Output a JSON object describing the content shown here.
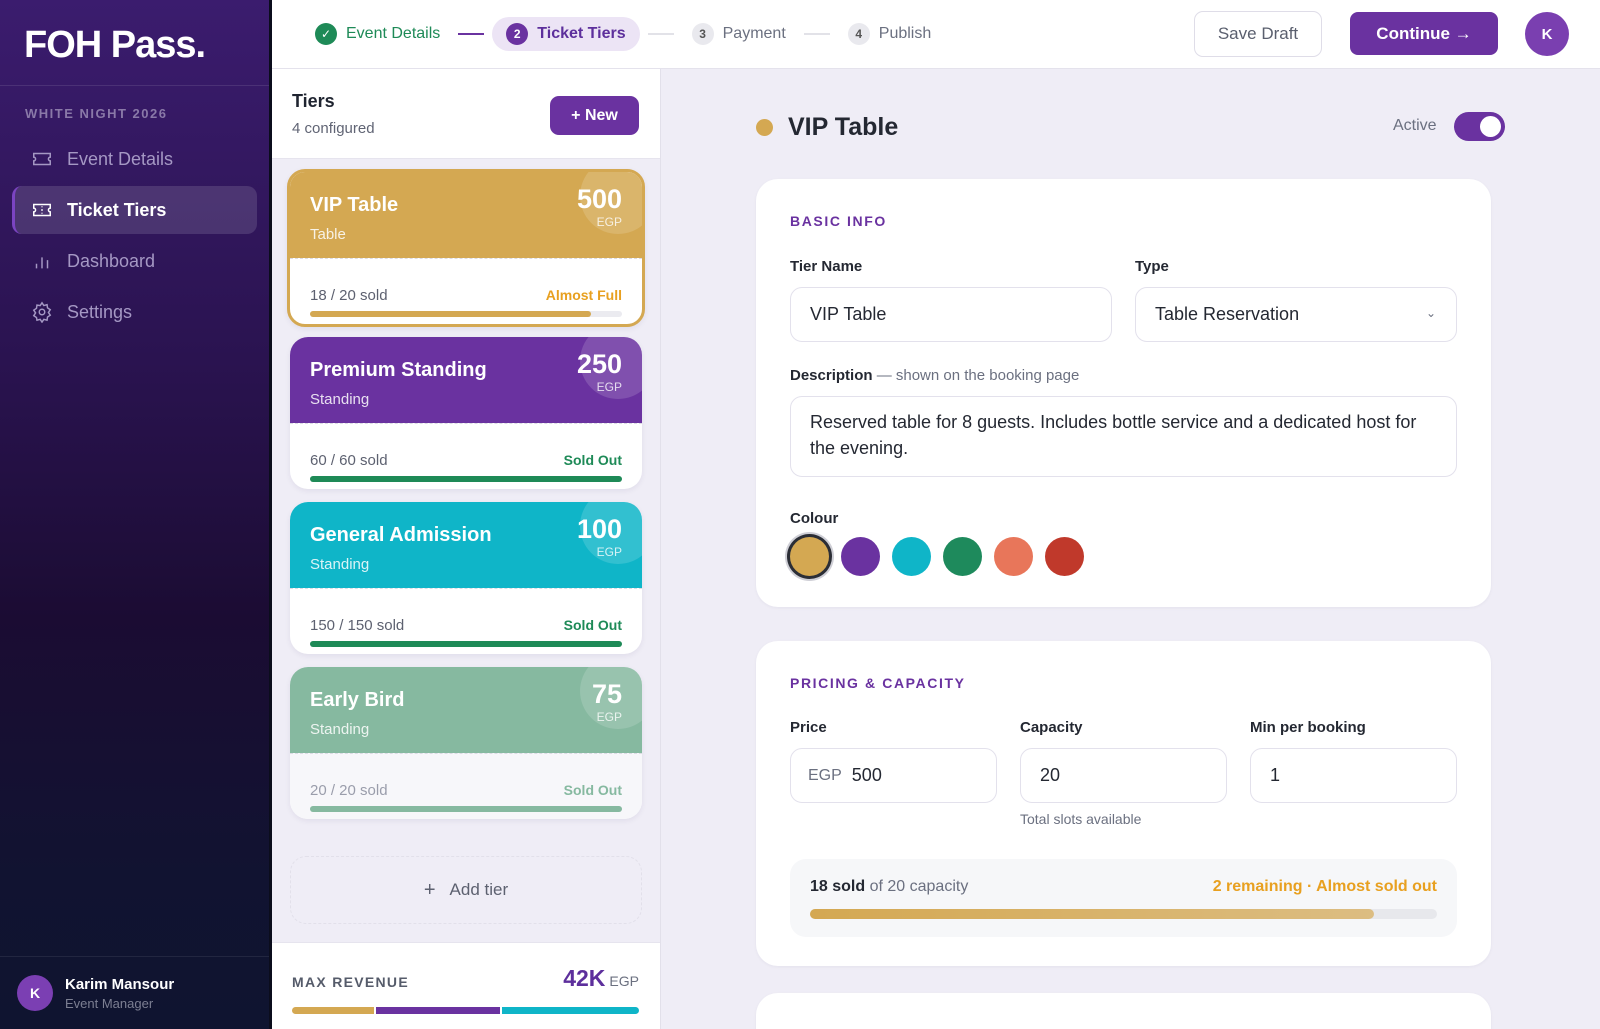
{
  "sidebar": {
    "logo": "FOH Pass.",
    "event_label": "WHITE NIGHT 2026",
    "items": [
      {
        "label": "Event Details",
        "icon": "ticket-icon",
        "active": false
      },
      {
        "label": "Ticket Tiers",
        "icon": "ticket-icon",
        "active": true
      },
      {
        "label": "Dashboard",
        "icon": "bar-chart-icon",
        "active": false
      },
      {
        "label": "Settings",
        "icon": "gear-icon",
        "active": false
      }
    ],
    "user": {
      "initial": "K",
      "name": "Karim Mansour",
      "role": "Event Manager"
    }
  },
  "topbar": {
    "steps": [
      {
        "num": "✓",
        "label": "Event Details",
        "state": "done"
      },
      {
        "num": "2",
        "label": "Ticket Tiers",
        "state": "current"
      },
      {
        "num": "3",
        "label": "Payment",
        "state": "pending"
      },
      {
        "num": "4",
        "label": "Publish",
        "state": "pending"
      }
    ],
    "save_draft": "Save Draft",
    "continue": "Continue →",
    "avatar_initial": "K"
  },
  "tiers": {
    "title": "Tiers",
    "subtitle": "4 configured",
    "new_button": "+ New",
    "items": [
      {
        "name": "VIP Table",
        "type": "Table",
        "price": "500",
        "currency": "EGP",
        "sold": "18 / 20 sold",
        "status": "Almost Full",
        "color": "#d4a852",
        "status_color": "#e8a020",
        "bar_color": "#d4a852",
        "progress": 90
      },
      {
        "name": "Premium Standing",
        "type": "Standing",
        "price": "250",
        "currency": "EGP",
        "sold": "60 / 60 sold",
        "status": "Sold Out",
        "color": "#6a32a0",
        "status_color": "#1e8a57",
        "bar_color": "#1e8a57",
        "progress": 100
      },
      {
        "name": "General Admission",
        "type": "Standing",
        "price": "100",
        "currency": "EGP",
        "sold": "150 / 150 sold",
        "status": "Sold Out",
        "color": "#0fb5c8",
        "status_color": "#1e8a57",
        "bar_color": "#1e8a57",
        "progress": 100
      },
      {
        "name": "Early Bird",
        "type": "Standing",
        "price": "75",
        "currency": "EGP",
        "sold": "20 / 20 sold",
        "status": "Sold Out",
        "color": "#86b9a0",
        "status_color": "#86b9a0",
        "bar_color": "#86b9a0",
        "progress": 100
      }
    ],
    "add_tier": "Add tier",
    "max_revenue": {
      "label": "MAX REVENUE",
      "value": "42K",
      "currency": "EGP",
      "segments": [
        {
          "color": "#d4a852",
          "share": 24
        },
        {
          "color": "#6a32a0",
          "share": 36
        },
        {
          "color": "#0fb5c8",
          "share": 40
        }
      ]
    }
  },
  "editor": {
    "title": "VIP Table",
    "dot_color": "#d4a852",
    "active_label": "Active",
    "active": true,
    "basic_info": {
      "section": "BASIC INFO",
      "tier_name_label": "Tier Name",
      "tier_name_value": "VIP Table",
      "type_label": "Type",
      "type_value": "Table Reservation",
      "description_label": "Description",
      "description_sub": "— shown on the booking page",
      "description_value": "Reserved table for 8 guests. Includes bottle service and a dedicated host for the evening.",
      "colour_label": "Colour",
      "colours": [
        "#d4a852",
        "#6a32a0",
        "#0fb5c8",
        "#1e8a5c",
        "#e8765a",
        "#c0392b"
      ],
      "selected_colour": 0
    },
    "pricing": {
      "section": "PRICING & CAPACITY",
      "price_label": "Price",
      "price_prefix": "EGP",
      "price_value": "500",
      "capacity_label": "Capacity",
      "capacity_value": "20",
      "capacity_hint": "Total slots available",
      "min_label": "Min per booking",
      "min_value": "1",
      "sold_count": "18 sold",
      "sold_of": "of 20 capacity",
      "remaining": "2 remaining · Almost sold out",
      "progress": 90
    }
  }
}
